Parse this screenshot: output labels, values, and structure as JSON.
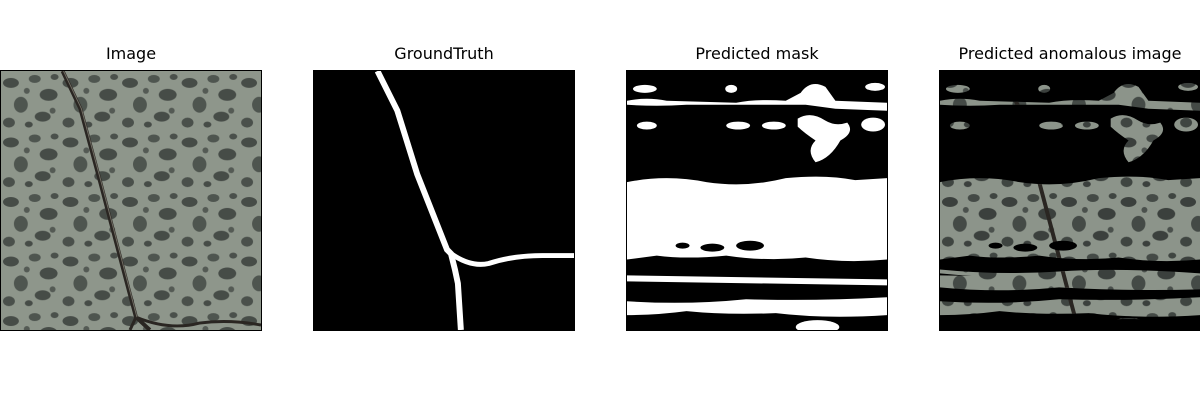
{
  "figure": {
    "panels": [
      {
        "title": "Image"
      },
      {
        "title": "GroundTruth"
      },
      {
        "title": "Predicted mask"
      },
      {
        "title": "Predicted anomalous image"
      }
    ]
  },
  "colors": {
    "background": "#ffffff",
    "stone_base": "#8c948a",
    "stone_spots": "#3b403d",
    "crack": "#2a2622",
    "mask_fg": "#ffffff",
    "mask_bg": "#000000"
  }
}
